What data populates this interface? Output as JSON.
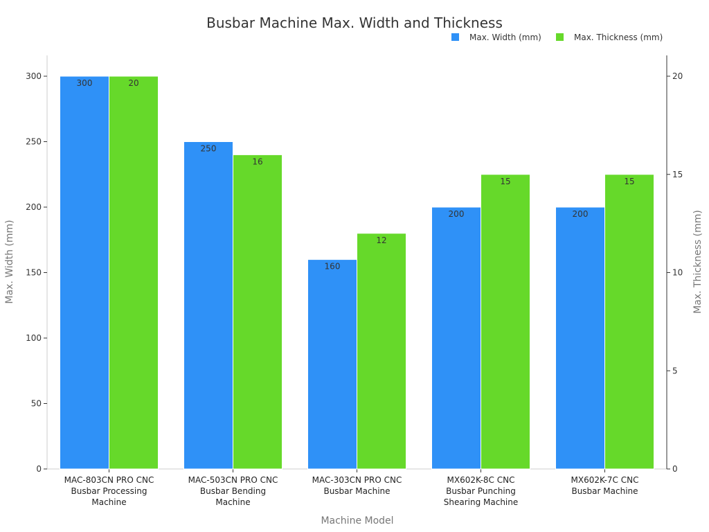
{
  "chart_data": {
    "type": "bar",
    "title": "Busbar Machine Max. Width and Thickness",
    "xlabel": "Machine Model",
    "ylabel": "Max. Width (mm)",
    "y2label": "Max. Thickness (mm)",
    "categories": [
      "MAC-803CN PRO CNC Busbar Processing Machine",
      "MAC-503CN PRO CNC Busbar Bending Machine",
      "MAC-303CN PRO CNC Busbar Machine",
      "MX602K-8C CNC Busbar Punching Shearing Machine",
      "MX602K-7C CNC Busbar Machine"
    ],
    "category_lines": [
      [
        "MAC-803CN PRO CNC",
        "Busbar Processing",
        "Machine"
      ],
      [
        "MAC-503CN PRO CNC",
        "Busbar Bending",
        "Machine"
      ],
      [
        "MAC-303CN PRO CNC",
        "Busbar Machine"
      ],
      [
        "MX602K-8C CNC",
        "Busbar Punching",
        "Shearing Machine"
      ],
      [
        "MX602K-7C CNC",
        "Busbar Machine"
      ]
    ],
    "series": [
      {
        "name": "Max. Width (mm)",
        "axis": "left",
        "color": "#2f91f7",
        "values": [
          300,
          250,
          160,
          200,
          200
        ]
      },
      {
        "name": "Max. Thickness (mm)",
        "axis": "right",
        "color": "#66d92a",
        "values": [
          20,
          16,
          12,
          15,
          15
        ]
      }
    ],
    "ylim": [
      0,
      300
    ],
    "y2lim": [
      0,
      20
    ],
    "yticks": [
      0,
      50,
      100,
      150,
      200,
      250,
      300
    ],
    "y2ticks": [
      0,
      5,
      10,
      15,
      20
    ],
    "grid": false,
    "legend_position": "top-right"
  }
}
